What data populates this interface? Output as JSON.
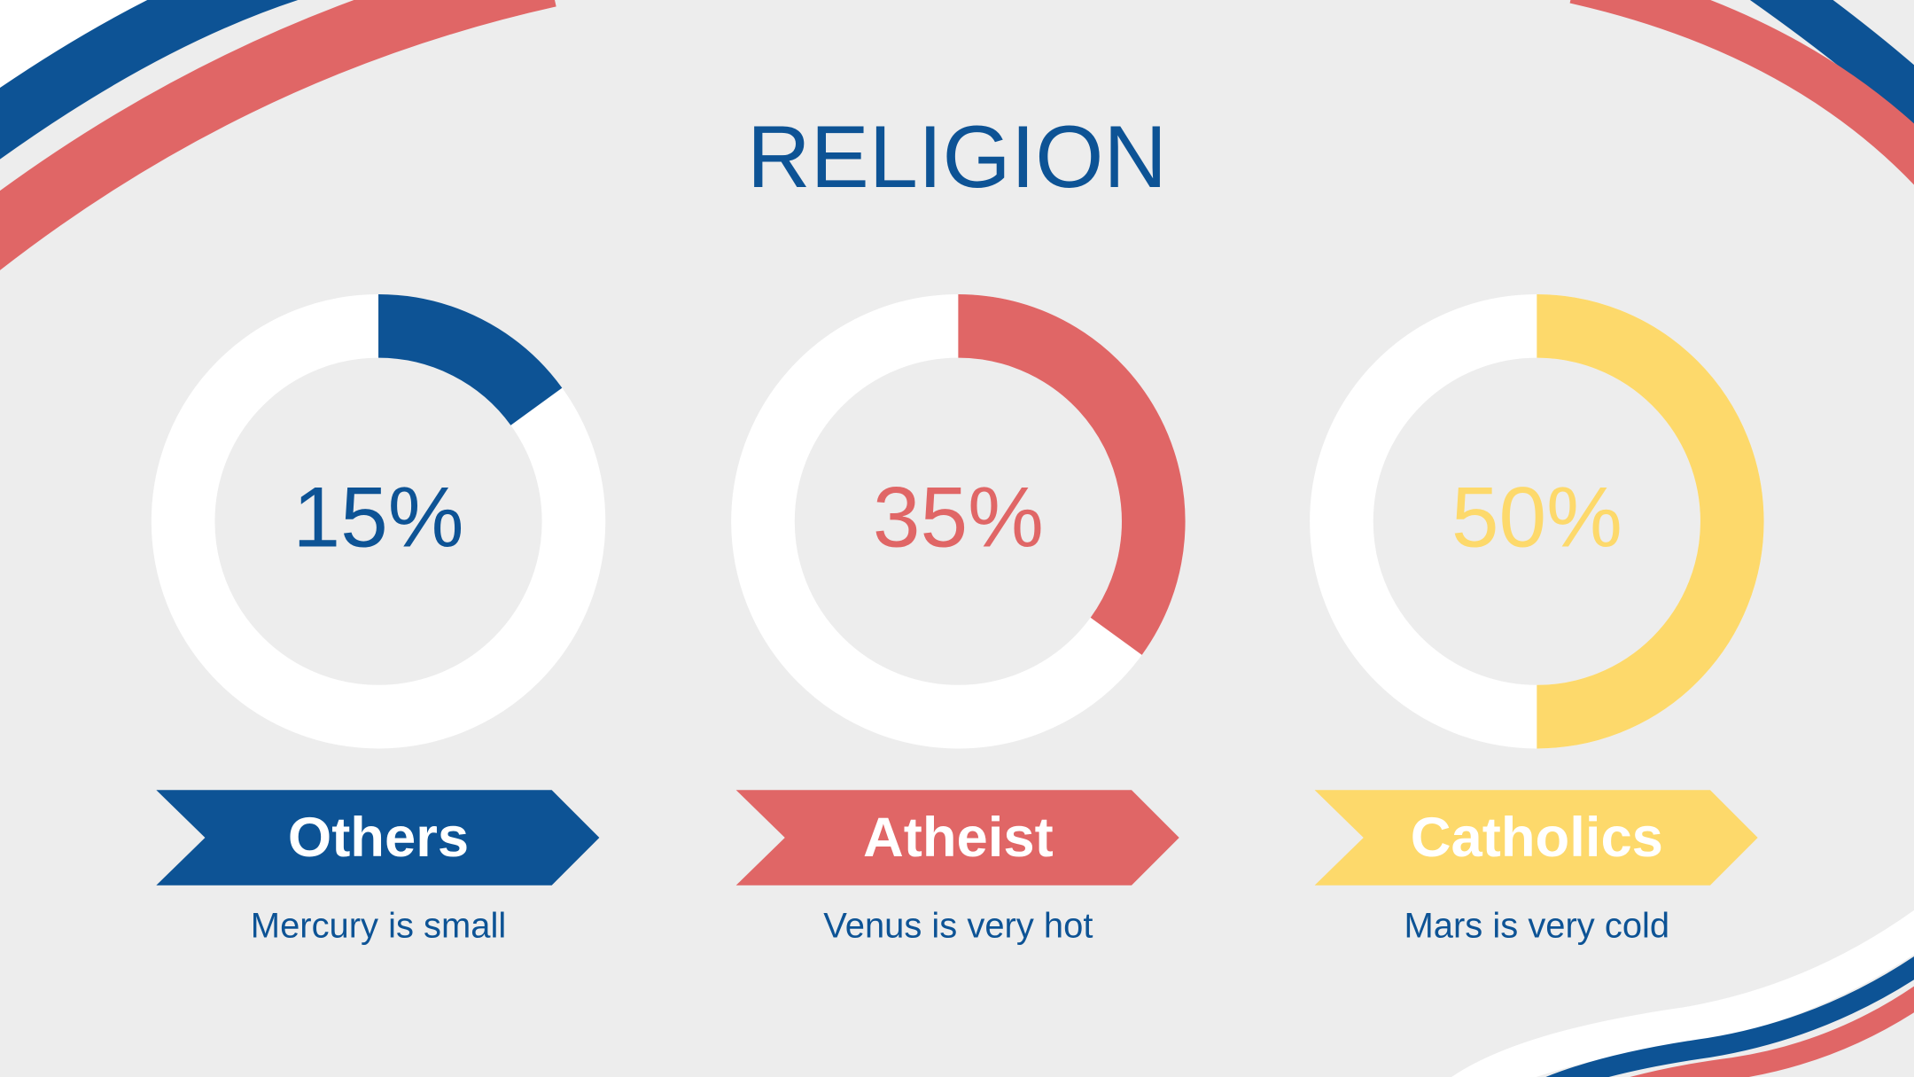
{
  "title": "RELIGION",
  "chart_data": [
    {
      "type": "donut",
      "values": [
        15
      ],
      "value_labels": [
        "15%"
      ],
      "ylim": [
        0,
        100
      ],
      "color": "#0d5395",
      "label": "Others",
      "caption": "Mercury is small"
    },
    {
      "type": "donut",
      "values": [
        35
      ],
      "value_labels": [
        "35%"
      ],
      "ylim": [
        0,
        100
      ],
      "color": "#e06666",
      "label": "Atheist",
      "caption": "Venus is very hot"
    },
    {
      "type": "donut",
      "values": [
        50
      ],
      "value_labels": [
        "50%"
      ],
      "ylim": [
        0,
        100
      ],
      "color": "#fdd96b",
      "label": "Catholics",
      "caption": "Mars is very cold"
    }
  ]
}
